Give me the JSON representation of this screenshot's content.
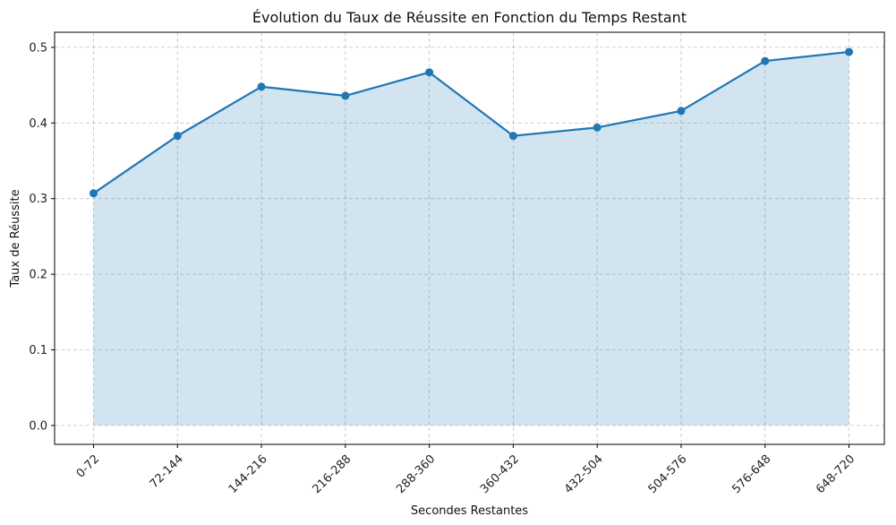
{
  "chart_data": {
    "type": "area",
    "title": "Évolution du Taux de Réussite en Fonction du Temps Restant",
    "xlabel": "Secondes Restantes",
    "ylabel": "Taux de Réussite",
    "categories": [
      "0-72",
      "72-144",
      "144-216",
      "216-288",
      "288-360",
      "360-432",
      "432-504",
      "504-576",
      "576-648",
      "648-720"
    ],
    "values": [
      0.307,
      0.383,
      0.448,
      0.436,
      0.467,
      0.383,
      0.394,
      0.416,
      0.482,
      0.494
    ],
    "ylim": [
      -0.025,
      0.52
    ],
    "yticks": [
      "0.0",
      "0.1",
      "0.2",
      "0.3",
      "0.4",
      "0.5"
    ],
    "grid": true,
    "line_color": "#1f77b4",
    "fill_color": "#1f77b4",
    "fill_opacity": 0.2
  }
}
